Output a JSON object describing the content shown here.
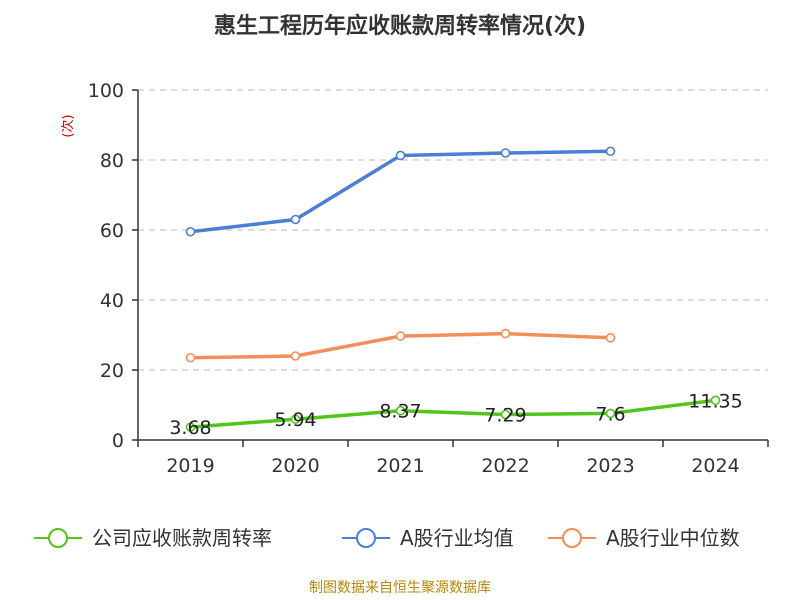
{
  "chart_data": {
    "type": "line",
    "title": "惠生工程历年应收账款周转率情况(次)",
    "ylabel": "(次)",
    "xlabel": "",
    "categories": [
      "2019",
      "2020",
      "2021",
      "2022",
      "2023",
      "2024"
    ],
    "ylim": [
      0,
      100
    ],
    "yticks": [
      0,
      20,
      40,
      60,
      80,
      100
    ],
    "grid": true,
    "legend_position": "bottom",
    "series": [
      {
        "name": "公司应收账款周转率",
        "color": "#52c41a",
        "values": [
          3.68,
          5.94,
          8.37,
          7.29,
          7.6,
          11.35
        ],
        "labels": [
          "3.68",
          "5.94",
          "8.37",
          "7.29",
          "7.6",
          "11.35"
        ]
      },
      {
        "name": "A股行业均值",
        "color": "#4a7fd4",
        "values": [
          59.5,
          63.0,
          81.3,
          82.0,
          82.5,
          null
        ]
      },
      {
        "name": "A股行业中位数",
        "color": "#f28e5a",
        "values": [
          23.5,
          24.0,
          29.7,
          30.4,
          29.2,
          null
        ]
      }
    ],
    "source": "制图数据来自恒生聚源数据库"
  }
}
